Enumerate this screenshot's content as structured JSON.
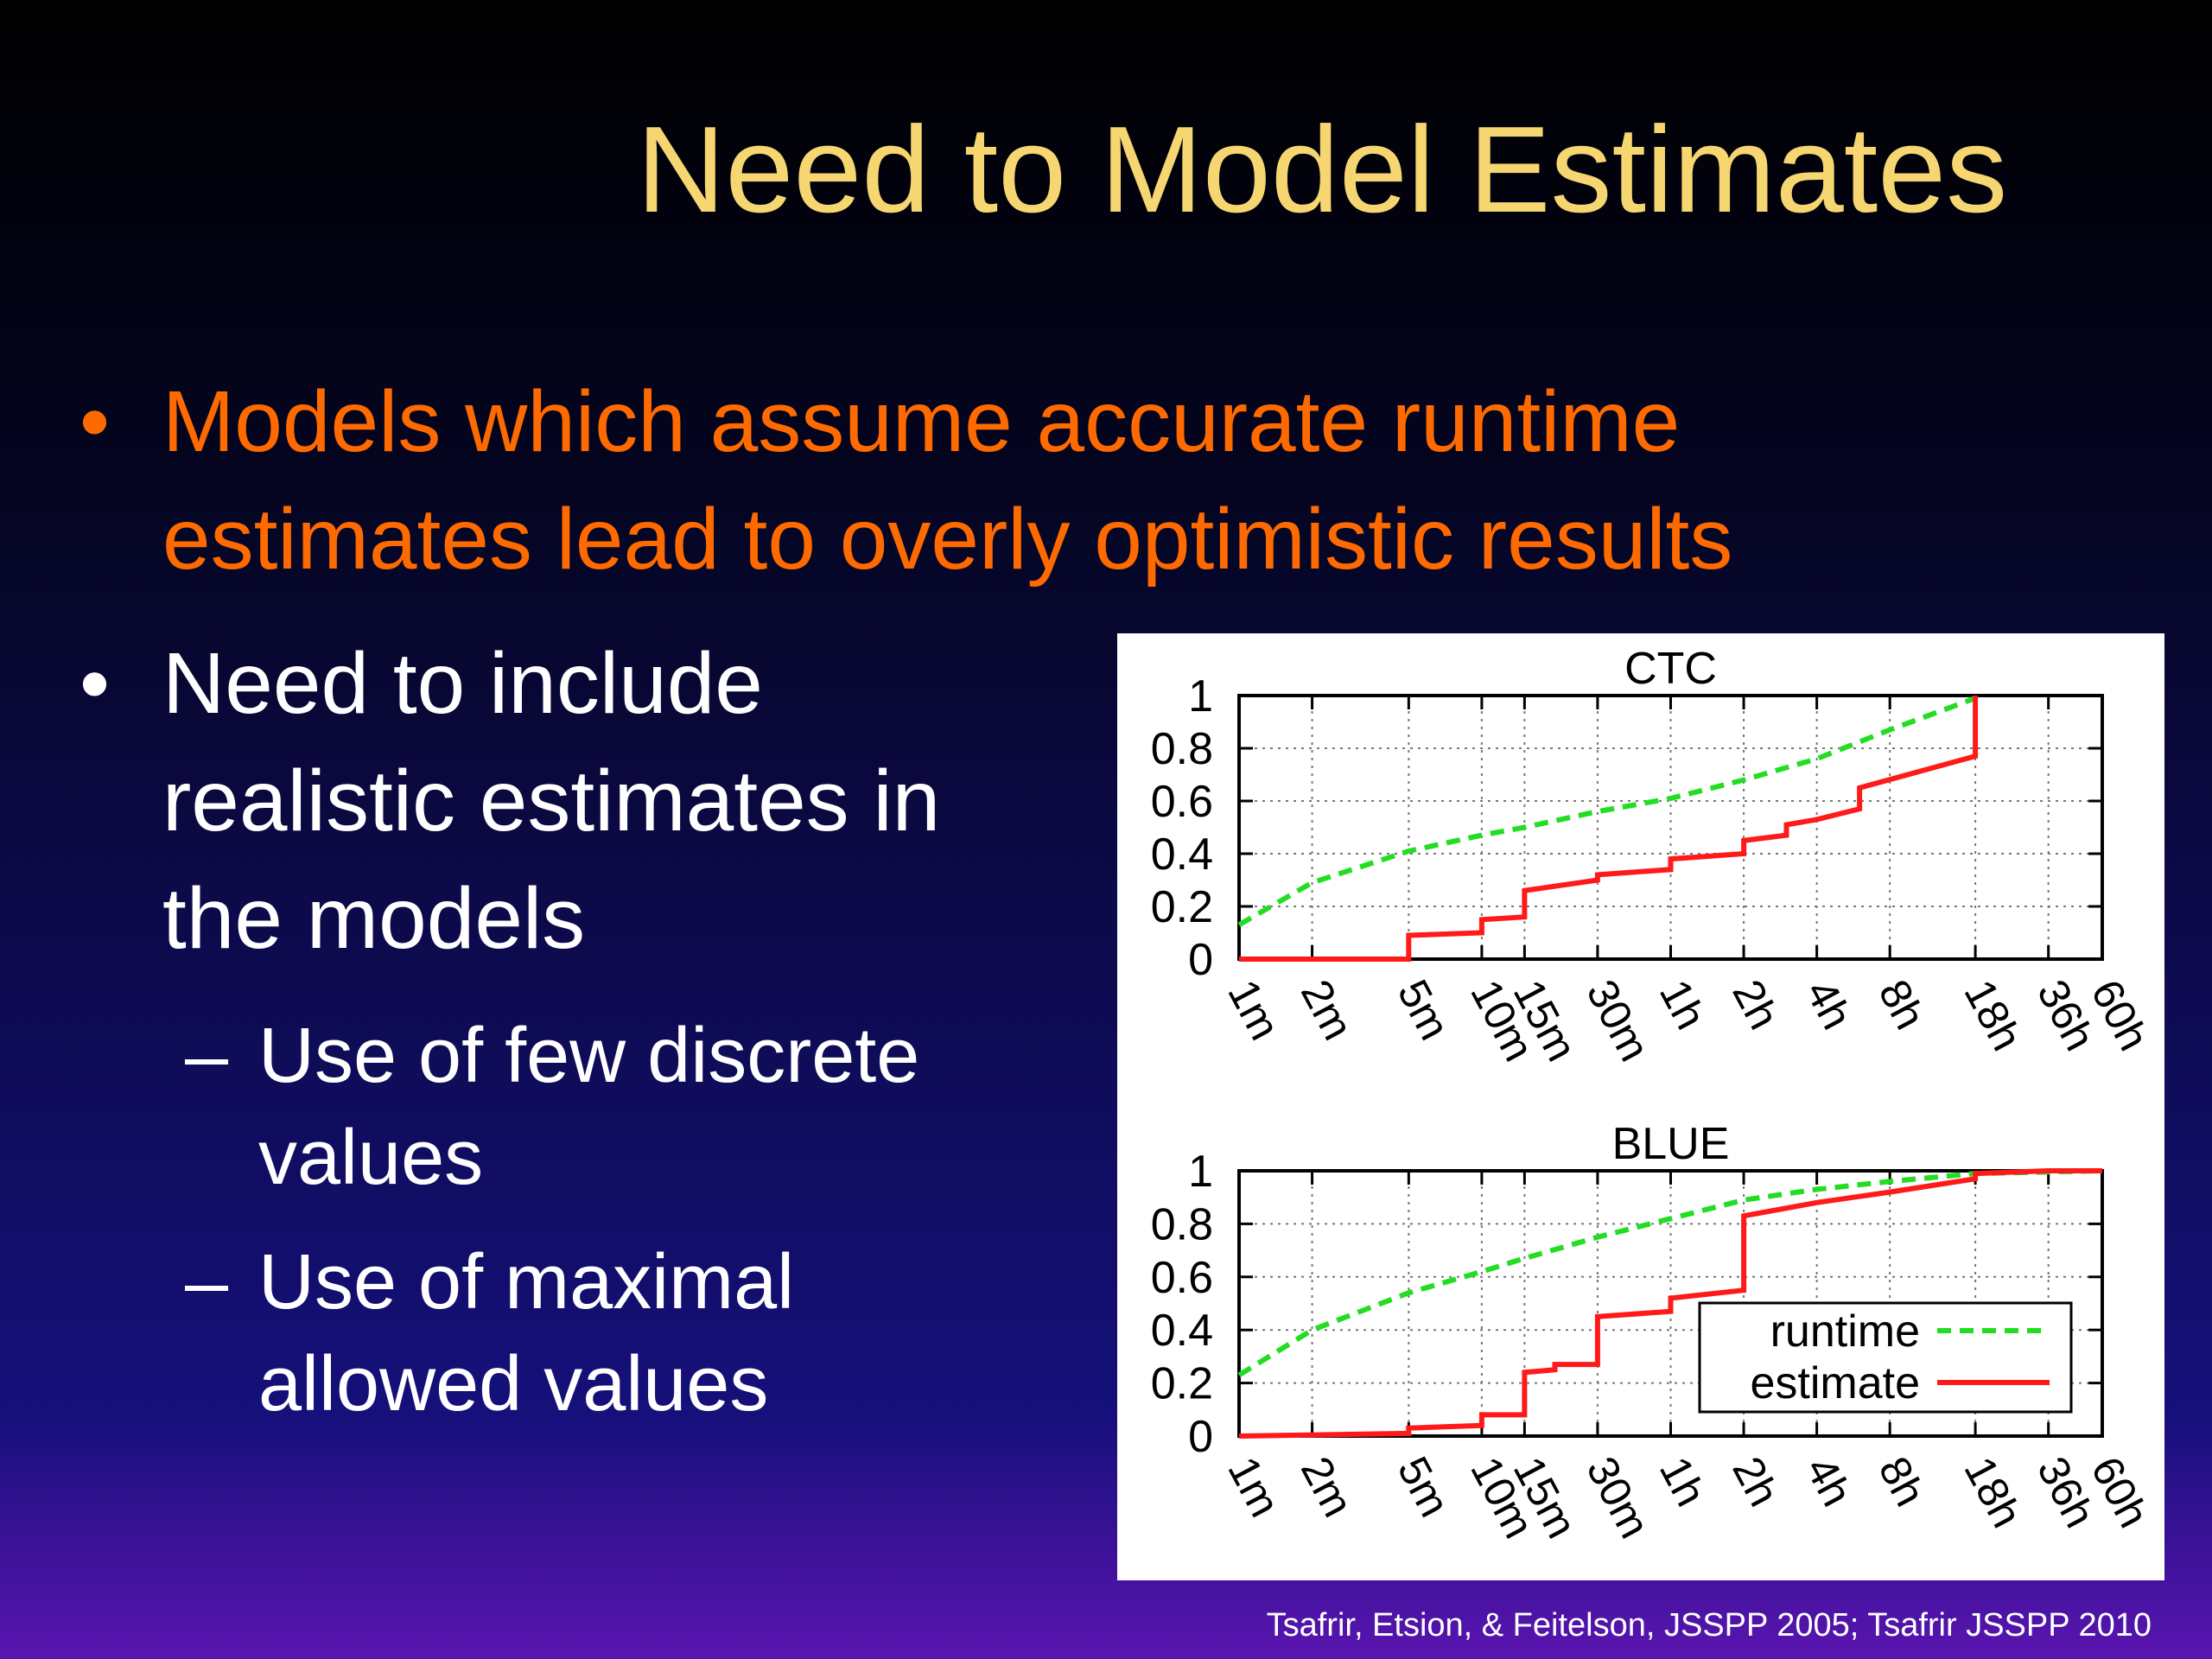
{
  "title": "Need to Model Estimates",
  "bullets": [
    {
      "marker": "•",
      "color": "#ff6a00",
      "lines": [
        "Models which assume accurate runtime",
        "estimates lead to overly optimistic results"
      ]
    },
    {
      "marker": "•",
      "color": "#ffffff",
      "lines": [
        "Need to include",
        "realistic estimates in",
        "the models"
      ]
    }
  ],
  "sub_bullets": [
    {
      "marker": "–",
      "lines": [
        "Use of few discrete",
        "values"
      ]
    },
    {
      "marker": "–",
      "lines": [
        "Use of maximal",
        "allowed values"
      ]
    }
  ],
  "citation": "Tsafrir, Etsion, & Feitelson, JSSPP 2005; Tsafrir JSSPP 2010",
  "chart_data": [
    {
      "type": "line",
      "title": "CTC",
      "xscale": "log",
      "grid": true,
      "xlim": [
        60,
        216000
      ],
      "xticks": [
        {
          "value": 60,
          "label": "1m"
        },
        {
          "value": 120,
          "label": "2m"
        },
        {
          "value": 300,
          "label": "5m"
        },
        {
          "value": 600,
          "label": "10m"
        },
        {
          "value": 900,
          "label": "15m"
        },
        {
          "value": 1800,
          "label": "30m"
        },
        {
          "value": 3600,
          "label": "1h"
        },
        {
          "value": 7200,
          "label": "2h"
        },
        {
          "value": 14400,
          "label": "4h"
        },
        {
          "value": 28800,
          "label": "8h"
        },
        {
          "value": 64800,
          "label": "18h"
        },
        {
          "value": 129600,
          "label": "36h"
        },
        {
          "value": 216000,
          "label": "60h"
        }
      ],
      "ylim": [
        0,
        1
      ],
      "yticks": [
        0,
        0.2,
        0.4,
        0.6,
        0.8,
        1
      ],
      "series": [
        {
          "color": "#22dd22",
          "dash": true,
          "x": [
            60,
            120,
            300,
            600,
            900,
            1800,
            3600,
            7200,
            14400,
            28800,
            64800
          ],
          "values": [
            0.13,
            0.29,
            0.41,
            0.47,
            0.5,
            0.56,
            0.61,
            0.68,
            0.76,
            0.87,
            0.99
          ]
        },
        {
          "color": "#ff1a1a",
          "dash": false,
          "x": [
            60,
            300,
            300,
            600,
            600,
            900,
            900,
            1800,
            1800,
            3600,
            3600,
            7200,
            7200,
            10800,
            10800,
            14400,
            21600,
            21600,
            64800,
            64800
          ],
          "values": [
            0,
            0,
            0.09,
            0.1,
            0.15,
            0.16,
            0.26,
            0.3,
            0.32,
            0.34,
            0.38,
            0.4,
            0.45,
            0.47,
            0.51,
            0.53,
            0.57,
            0.65,
            0.77,
            1
          ]
        }
      ]
    },
    {
      "type": "line",
      "title": "BLUE",
      "xscale": "log",
      "grid": true,
      "legend": "lower right",
      "xlim": [
        60,
        216000
      ],
      "xticks": [
        {
          "value": 60,
          "label": "1m"
        },
        {
          "value": 120,
          "label": "2m"
        },
        {
          "value": 300,
          "label": "5m"
        },
        {
          "value": 600,
          "label": "10m"
        },
        {
          "value": 900,
          "label": "15m"
        },
        {
          "value": 1800,
          "label": "30m"
        },
        {
          "value": 3600,
          "label": "1h"
        },
        {
          "value": 7200,
          "label": "2h"
        },
        {
          "value": 14400,
          "label": "4h"
        },
        {
          "value": 28800,
          "label": "8h"
        },
        {
          "value": 64800,
          "label": "18h"
        },
        {
          "value": 129600,
          "label": "36h"
        },
        {
          "value": 216000,
          "label": "60h"
        }
      ],
      "ylim": [
        0,
        1
      ],
      "yticks": [
        0,
        0.2,
        0.4,
        0.6,
        0.8,
        1
      ],
      "series": [
        {
          "name": "runtime",
          "color": "#22dd22",
          "dash": true,
          "x": [
            60,
            120,
            300,
            600,
            900,
            1800,
            3600,
            7200,
            14400,
            28800,
            64800,
            216000
          ],
          "values": [
            0.23,
            0.4,
            0.54,
            0.62,
            0.67,
            0.75,
            0.82,
            0.89,
            0.93,
            0.96,
            0.99,
            1
          ]
        },
        {
          "name": "estimate",
          "color": "#ff1a1a",
          "dash": false,
          "x": [
            60,
            300,
            300,
            600,
            600,
            900,
            900,
            1200,
            1200,
            1800,
            1800,
            3600,
            3600,
            7200,
            7200,
            14400,
            28800,
            64800,
            64800,
            129600,
            216000
          ],
          "values": [
            0,
            0.01,
            0.03,
            0.04,
            0.08,
            0.08,
            0.24,
            0.25,
            0.27,
            0.27,
            0.45,
            0.47,
            0.52,
            0.55,
            0.83,
            0.88,
            0.92,
            0.97,
            0.99,
            1,
            1
          ]
        }
      ]
    }
  ]
}
